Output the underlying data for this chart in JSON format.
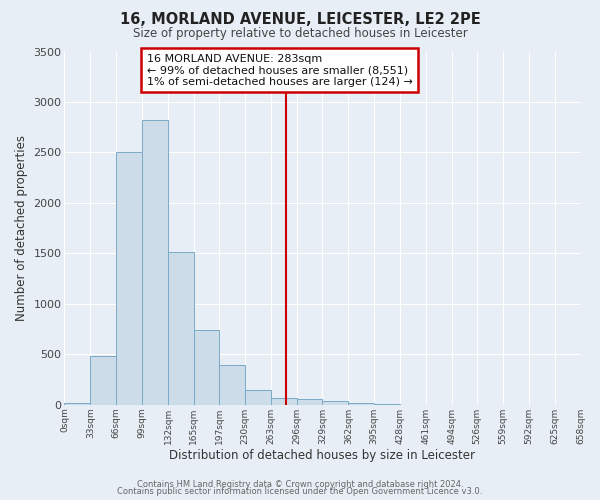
{
  "title": "16, MORLAND AVENUE, LEICESTER, LE2 2PE",
  "subtitle": "Size of property relative to detached houses in Leicester",
  "xlabel": "Distribution of detached houses by size in Leicester",
  "ylabel": "Number of detached properties",
  "bar_color": "#ccdce8",
  "bar_edge_color": "#7aaac8",
  "background_color": "#e8eef5",
  "grid_color": "#ffffff",
  "bin_edges": [
    0,
    33,
    66,
    99,
    132,
    165,
    197,
    230,
    263,
    296,
    329,
    362,
    395,
    428,
    461,
    494,
    526,
    559,
    592,
    625,
    658
  ],
  "bar_heights": [
    20,
    480,
    2500,
    2820,
    1510,
    740,
    390,
    150,
    70,
    55,
    40,
    20,
    10,
    0,
    0,
    0,
    0,
    0,
    0,
    0
  ],
  "tick_labels": [
    "0sqm",
    "33sqm",
    "66sqm",
    "99sqm",
    "132sqm",
    "165sqm",
    "197sqm",
    "230sqm",
    "263sqm",
    "296sqm",
    "329sqm",
    "362sqm",
    "395sqm",
    "428sqm",
    "461sqm",
    "494sqm",
    "526sqm",
    "559sqm",
    "592sqm",
    "625sqm",
    "658sqm"
  ],
  "property_size": 283,
  "vline_color": "#cc0000",
  "annotation_title": "16 MORLAND AVENUE: 283sqm",
  "annotation_line2": "← 99% of detached houses are smaller (8,551)",
  "annotation_line3": "1% of semi-detached houses are larger (124) →",
  "annotation_box_color": "#ffffff",
  "annotation_box_edge_color": "#cc0000",
  "ylim": [
    0,
    3500
  ],
  "footer_line1": "Contains HM Land Registry data © Crown copyright and database right 2024.",
  "footer_line2": "Contains public sector information licensed under the Open Government Licence v3.0."
}
